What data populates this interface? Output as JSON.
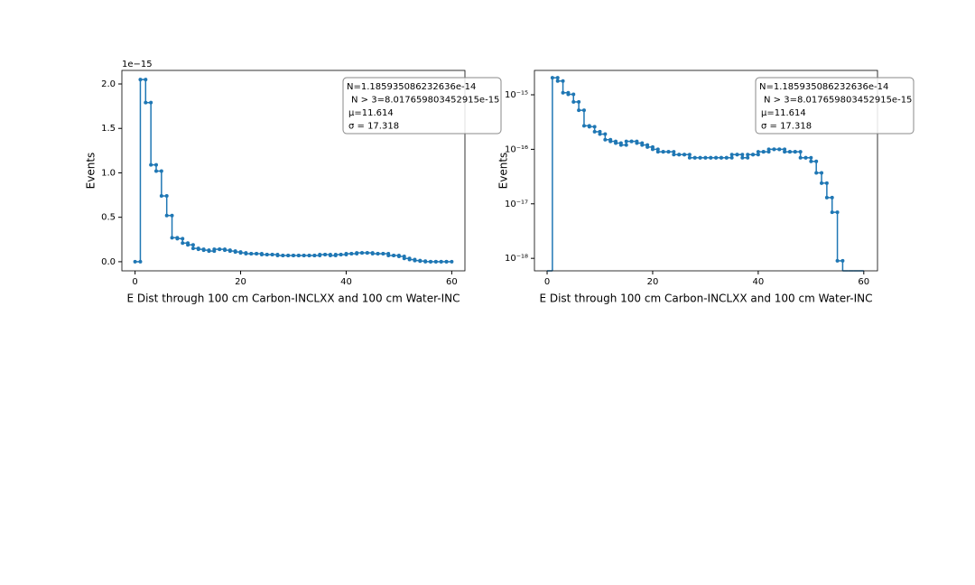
{
  "chart_data": [
    {
      "type": "histogram",
      "log_scale": false,
      "color": "#1f77b4",
      "xlabel": "E Dist through 100 cm Carbon-INCLXX and 100 cm Water-INC",
      "ylabel": "Events",
      "offset_text": "1e−15",
      "annotation": [
        "N=1.185935086232636e-14",
        "N > 3=8.017659803452915e-15",
        "μ=11.614",
        "σ = 17.318"
      ],
      "bins": [
        0,
        1,
        2,
        3,
        4,
        5,
        6,
        7,
        8,
        9,
        10,
        11,
        12,
        13,
        14,
        15,
        16,
        17,
        18,
        19,
        20,
        21,
        22,
        23,
        24,
        25,
        26,
        27,
        28,
        29,
        30,
        31,
        32,
        33,
        34,
        35,
        36,
        37,
        38,
        39,
        40,
        41,
        42,
        43,
        44,
        45,
        46,
        47,
        48,
        49,
        50,
        51,
        52,
        53,
        54,
        55,
        56,
        57,
        58,
        59,
        60
      ],
      "values": [
        0,
        2.05e-15,
        1.79e-15,
        1.09e-15,
        1.02e-15,
        7.4e-16,
        5.2e-16,
        2.7e-16,
        2.6e-16,
        2.1e-16,
        1.9e-16,
        1.5e-16,
        1.4e-16,
        1.3e-16,
        1.2e-16,
        1.4e-16,
        1.4e-16,
        1.3e-16,
        1.2e-16,
        1.1e-16,
        1e-16,
        9e-17,
        9e-17,
        9e-17,
        8e-17,
        8e-17,
        8e-17,
        7e-17,
        7e-17,
        7e-17,
        7e-17,
        7e-17,
        7e-17,
        7e-17,
        7e-17,
        8e-17,
        8e-17,
        7e-17,
        8e-17,
        8e-17,
        9e-17,
        9e-17,
        1e-16,
        1e-16,
        1e-16,
        9e-17,
        9e-17,
        9e-17,
        7e-17,
        7e-17,
        6e-17,
        3.7e-17,
        2.4e-17,
        1.3e-17,
        7e-18,
        9e-19,
        0,
        0,
        0,
        0
      ],
      "xlim": [
        -2.5,
        62.5
      ],
      "ylim": [
        -1.025e-16,
        2.1525e-15
      ],
      "xticks": [
        0,
        20,
        40,
        60
      ],
      "yticks": [
        {
          "value": 0,
          "label": "0.0"
        },
        {
          "value": 5e-16,
          "label": "0.5"
        },
        {
          "value": 1e-15,
          "label": "1.0"
        },
        {
          "value": 1.5e-15,
          "label": "1.5"
        },
        {
          "value": 2e-15,
          "label": "2.0"
        }
      ]
    },
    {
      "type": "histogram",
      "log_scale": true,
      "color": "#1f77b4",
      "xlabel": "E Dist through 100 cm Carbon-INCLXX and 100 cm Water-INC",
      "ylabel": "Events",
      "annotation": [
        "N=1.185935086232636e-14",
        "N > 3=8.017659803452915e-15",
        "μ=11.614",
        "σ = 17.318"
      ],
      "bins": [
        0,
        1,
        2,
        3,
        4,
        5,
        6,
        7,
        8,
        9,
        10,
        11,
        12,
        13,
        14,
        15,
        16,
        17,
        18,
        19,
        20,
        21,
        22,
        23,
        24,
        25,
        26,
        27,
        28,
        29,
        30,
        31,
        32,
        33,
        34,
        35,
        36,
        37,
        38,
        39,
        40,
        41,
        42,
        43,
        44,
        45,
        46,
        47,
        48,
        49,
        50,
        51,
        52,
        53,
        54,
        55,
        56,
        57,
        58,
        59,
        60
      ],
      "values": [
        0,
        2.05e-15,
        1.79e-15,
        1.09e-15,
        1.02e-15,
        7.4e-16,
        5.2e-16,
        2.7e-16,
        2.6e-16,
        2.1e-16,
        1.9e-16,
        1.5e-16,
        1.4e-16,
        1.3e-16,
        1.2e-16,
        1.4e-16,
        1.4e-16,
        1.3e-16,
        1.2e-16,
        1.1e-16,
        1e-16,
        9e-17,
        9e-17,
        9e-17,
        8e-17,
        8e-17,
        8e-17,
        7e-17,
        7e-17,
        7e-17,
        7e-17,
        7e-17,
        7e-17,
        7e-17,
        7e-17,
        8e-17,
        8e-17,
        7e-17,
        8e-17,
        8e-17,
        9e-17,
        9e-17,
        1e-16,
        1e-16,
        1e-16,
        9e-17,
        9e-17,
        9e-17,
        7e-17,
        7e-17,
        6e-17,
        3.7e-17,
        2.4e-17,
        1.3e-17,
        7e-18,
        9e-19,
        0,
        0,
        0,
        0
      ],
      "xlim": [
        -2.4,
        62.6
      ],
      "ylim": [
        5.9e-19,
        2.8e-15
      ],
      "xticks": [
        0,
        20,
        40,
        60
      ],
      "yticks": [
        {
          "value": 1e-15,
          "label": "10⁻¹⁵"
        },
        {
          "value": 1e-16,
          "label": "10⁻¹⁶"
        },
        {
          "value": 1e-17,
          "label": "10⁻¹⁷"
        },
        {
          "value": 1e-18,
          "label": "10⁻¹⁸"
        }
      ]
    }
  ]
}
